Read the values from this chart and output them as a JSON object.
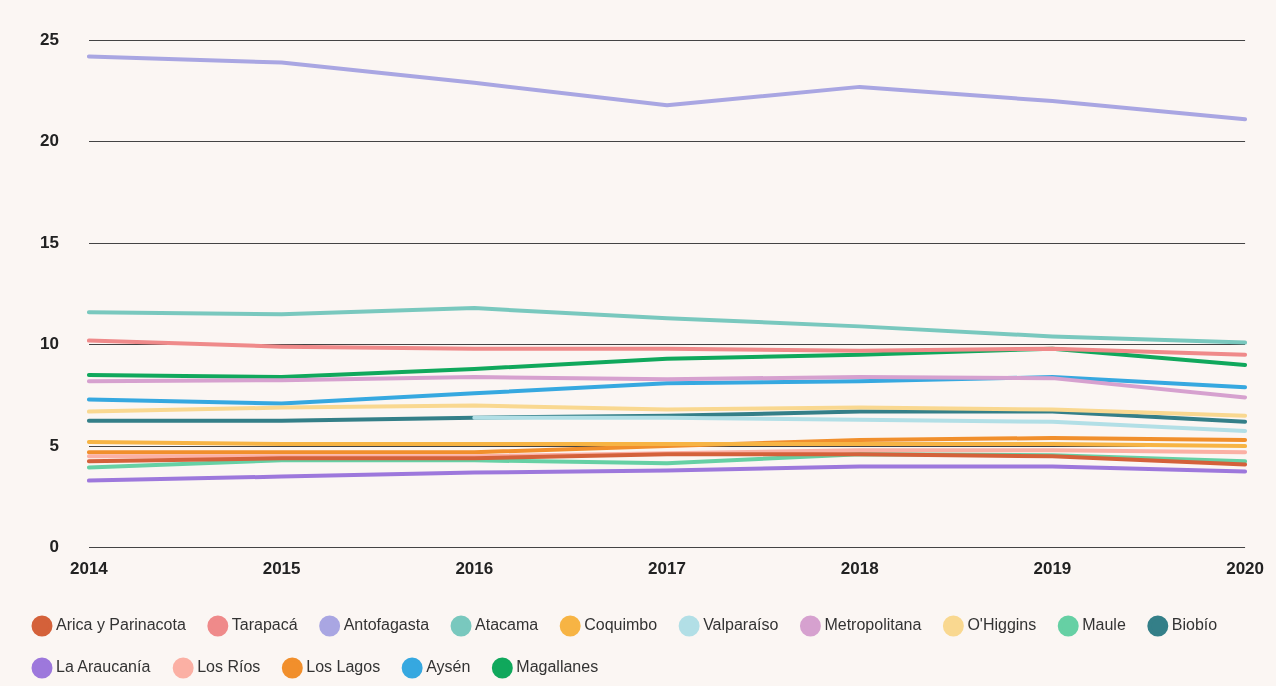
{
  "chart_data": {
    "type": "line",
    "categories": [
      "2014",
      "2015",
      "2016",
      "2017",
      "2018",
      "2019",
      "2020"
    ],
    "ylim": [
      0,
      25
    ],
    "yticks": [
      0,
      5,
      10,
      15,
      20,
      25
    ],
    "grid": "y",
    "legend": "bottom",
    "marker": "none",
    "line_style": "solid",
    "series": [
      {
        "name": "Arica y Parinacota",
        "color": "#d4613a",
        "values": [
          4.25,
          4.4,
          4.4,
          4.6,
          4.6,
          4.5,
          4.1
        ]
      },
      {
        "name": "Tarapacá",
        "color": "#ef8a8a",
        "values": [
          10.2,
          9.9,
          9.8,
          9.8,
          9.7,
          9.8,
          9.5
        ]
      },
      {
        "name": "Antofagasta",
        "color": "#a9a6e2",
        "values": [
          24.2,
          23.9,
          22.9,
          21.8,
          22.7,
          22.0,
          21.1
        ]
      },
      {
        "name": "Atacama",
        "color": "#79c8be",
        "values": [
          11.6,
          11.5,
          11.8,
          11.3,
          10.9,
          10.4,
          10.1
        ]
      },
      {
        "name": "Coquimbo",
        "color": "#f7b444",
        "values": [
          5.2,
          5.1,
          5.1,
          5.1,
          5.1,
          5.1,
          5.0
        ]
      },
      {
        "name": "Valparaíso",
        "color": "#b2dfe6",
        "values": [
          null,
          null,
          6.4,
          6.4,
          6.3,
          6.2,
          5.75
        ]
      },
      {
        "name": "Metropolitana",
        "color": "#d6a1cf",
        "values": [
          8.2,
          8.25,
          8.4,
          8.3,
          8.4,
          8.35,
          7.4
        ]
      },
      {
        "name": "O'Higgins",
        "color": "#f9d890",
        "values": [
          6.7,
          6.9,
          7.0,
          6.8,
          6.9,
          6.8,
          6.5
        ]
      },
      {
        "name": "Maule",
        "color": "#66d0a4",
        "values": [
          3.95,
          4.3,
          4.3,
          4.15,
          4.6,
          4.55,
          4.25
        ]
      },
      {
        "name": "Biobío",
        "color": "#347f88",
        "values": [
          6.25,
          6.25,
          6.4,
          6.5,
          6.7,
          6.7,
          6.2
        ]
      },
      {
        "name": "La Araucanía",
        "color": "#9d78dc",
        "values": [
          3.3,
          3.5,
          3.7,
          3.8,
          4.0,
          4.0,
          3.75
        ]
      },
      {
        "name": "Los Ríos",
        "color": "#fbb0a4",
        "values": [
          4.5,
          4.5,
          4.5,
          4.65,
          4.8,
          4.8,
          4.7
        ]
      },
      {
        "name": "Los Lagos",
        "color": "#f18f2c",
        "values": [
          4.7,
          4.7,
          4.7,
          5.0,
          5.3,
          5.4,
          5.3
        ]
      },
      {
        "name": "Aysén",
        "color": "#36a8e0",
        "values": [
          7.3,
          7.1,
          7.6,
          8.1,
          8.2,
          8.4,
          7.9
        ]
      },
      {
        "name": "Magallanes",
        "color": "#10a85c",
        "values": [
          8.5,
          8.4,
          8.8,
          9.3,
          9.5,
          9.8,
          9.0
        ]
      }
    ]
  }
}
